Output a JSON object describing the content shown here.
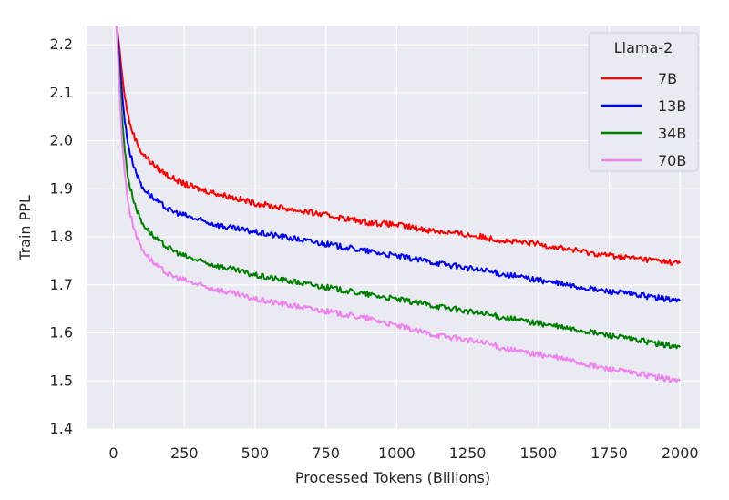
{
  "chart_data": {
    "type": "line",
    "title": "",
    "xlabel": "Processed Tokens (Billions)",
    "ylabel": "Train PPL",
    "xlim": [
      -95,
      2070
    ],
    "ylim": [
      1.4,
      2.24
    ],
    "xticks": [
      0,
      250,
      500,
      750,
      1000,
      1250,
      1500,
      1750,
      2000
    ],
    "yticks": [
      1.4,
      1.5,
      1.6,
      1.7,
      1.8,
      1.9,
      2.0,
      2.1,
      2.2
    ],
    "xtick_labels": [
      "0",
      "250",
      "500",
      "750",
      "1000",
      "1250",
      "1500",
      "1750",
      "2000"
    ],
    "ytick_labels": [
      "1.4",
      "1.5",
      "1.6",
      "1.7",
      "1.8",
      "1.9",
      "2.0",
      "2.1",
      "2.2"
    ],
    "grid": true,
    "legend": {
      "title": "Llama-2",
      "position": "top-right"
    },
    "series": [
      {
        "name": "7B",
        "color": "#ff0000",
        "x": [
          10,
          20,
          30,
          40,
          50,
          60,
          80,
          100,
          150,
          200,
          250,
          300,
          400,
          500,
          600,
          700,
          800,
          900,
          1000,
          1100,
          1200,
          1300,
          1400,
          1500,
          1600,
          1700,
          1800,
          1900,
          2000
        ],
        "y": [
          2.25,
          2.2,
          2.14,
          2.09,
          2.06,
          2.03,
          2.0,
          1.975,
          1.945,
          1.925,
          1.91,
          1.9,
          1.885,
          1.87,
          1.86,
          1.85,
          1.84,
          1.83,
          1.825,
          1.815,
          1.808,
          1.8,
          1.79,
          1.785,
          1.775,
          1.765,
          1.758,
          1.752,
          1.745
        ]
      },
      {
        "name": "13B",
        "color": "#0000ff",
        "x": [
          10,
          20,
          30,
          40,
          50,
          60,
          80,
          100,
          150,
          200,
          250,
          300,
          400,
          500,
          600,
          700,
          800,
          900,
          1000,
          1100,
          1200,
          1300,
          1400,
          1500,
          1600,
          1700,
          1800,
          1900,
          2000
        ],
        "y": [
          2.25,
          2.18,
          2.1,
          2.04,
          2.0,
          1.97,
          1.935,
          1.905,
          1.875,
          1.855,
          1.845,
          1.835,
          1.82,
          1.81,
          1.8,
          1.79,
          1.78,
          1.77,
          1.76,
          1.75,
          1.74,
          1.73,
          1.72,
          1.71,
          1.7,
          1.69,
          1.683,
          1.675,
          1.667
        ]
      },
      {
        "name": "34B",
        "color": "#008000",
        "x": [
          10,
          20,
          30,
          40,
          50,
          60,
          80,
          100,
          150,
          200,
          250,
          300,
          400,
          500,
          600,
          700,
          800,
          900,
          1000,
          1100,
          1200,
          1300,
          1400,
          1500,
          1600,
          1700,
          1800,
          1900,
          2000
        ],
        "y": [
          2.25,
          2.15,
          2.05,
          1.98,
          1.93,
          1.9,
          1.86,
          1.83,
          1.795,
          1.775,
          1.76,
          1.75,
          1.735,
          1.72,
          1.71,
          1.7,
          1.69,
          1.68,
          1.67,
          1.66,
          1.65,
          1.64,
          1.63,
          1.62,
          1.61,
          1.6,
          1.59,
          1.58,
          1.57
        ]
      },
      {
        "name": "70B",
        "color": "#ee82ee",
        "x": [
          10,
          20,
          30,
          40,
          50,
          60,
          80,
          100,
          150,
          200,
          250,
          300,
          400,
          500,
          600,
          700,
          800,
          900,
          1000,
          1100,
          1200,
          1300,
          1400,
          1500,
          1600,
          1700,
          1800,
          1900,
          2000
        ],
        "y": [
          2.25,
          2.12,
          2.0,
          1.93,
          1.88,
          1.845,
          1.805,
          1.775,
          1.74,
          1.72,
          1.71,
          1.7,
          1.685,
          1.67,
          1.66,
          1.65,
          1.64,
          1.63,
          1.615,
          1.6,
          1.59,
          1.58,
          1.565,
          1.555,
          1.545,
          1.53,
          1.52,
          1.51,
          1.5
        ]
      }
    ]
  }
}
